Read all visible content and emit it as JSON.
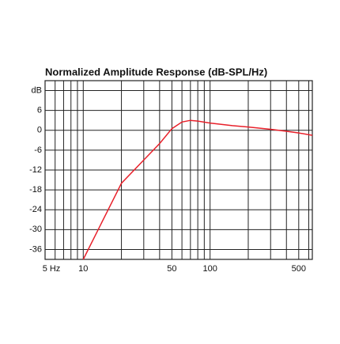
{
  "chart_data": {
    "type": "line",
    "title": "Normalized Amplitude Response (dB-SPL/Hz)",
    "log_x": true,
    "x": [
      10,
      20,
      30,
      40,
      50,
      60,
      70,
      80,
      100,
      150,
      200,
      300,
      400,
      500,
      640
    ],
    "series": [
      {
        "color": "#e8202a",
        "values": [
          -39,
          -16,
          -9,
          -4,
          0.5,
          2.5,
          3,
          2.8,
          2.2,
          1.4,
          1,
          0.3,
          -0.3,
          -0.8,
          -1.5
        ]
      }
    ],
    "xlim": [
      5,
      640
    ],
    "ylim": [
      -39,
      15
    ],
    "xticks": [
      {
        "value": 5,
        "label": "5 Hz"
      },
      10,
      50,
      100,
      500
    ],
    "xminor_ticks": [
      6,
      7,
      8,
      9,
      20,
      30,
      40,
      60,
      70,
      80,
      90,
      200,
      300,
      400,
      600
    ],
    "yticks": [
      {
        "value": 12,
        "label": "dB"
      },
      6,
      0,
      -6,
      -12,
      -18,
      -24,
      -30,
      -36
    ],
    "grid": true
  }
}
